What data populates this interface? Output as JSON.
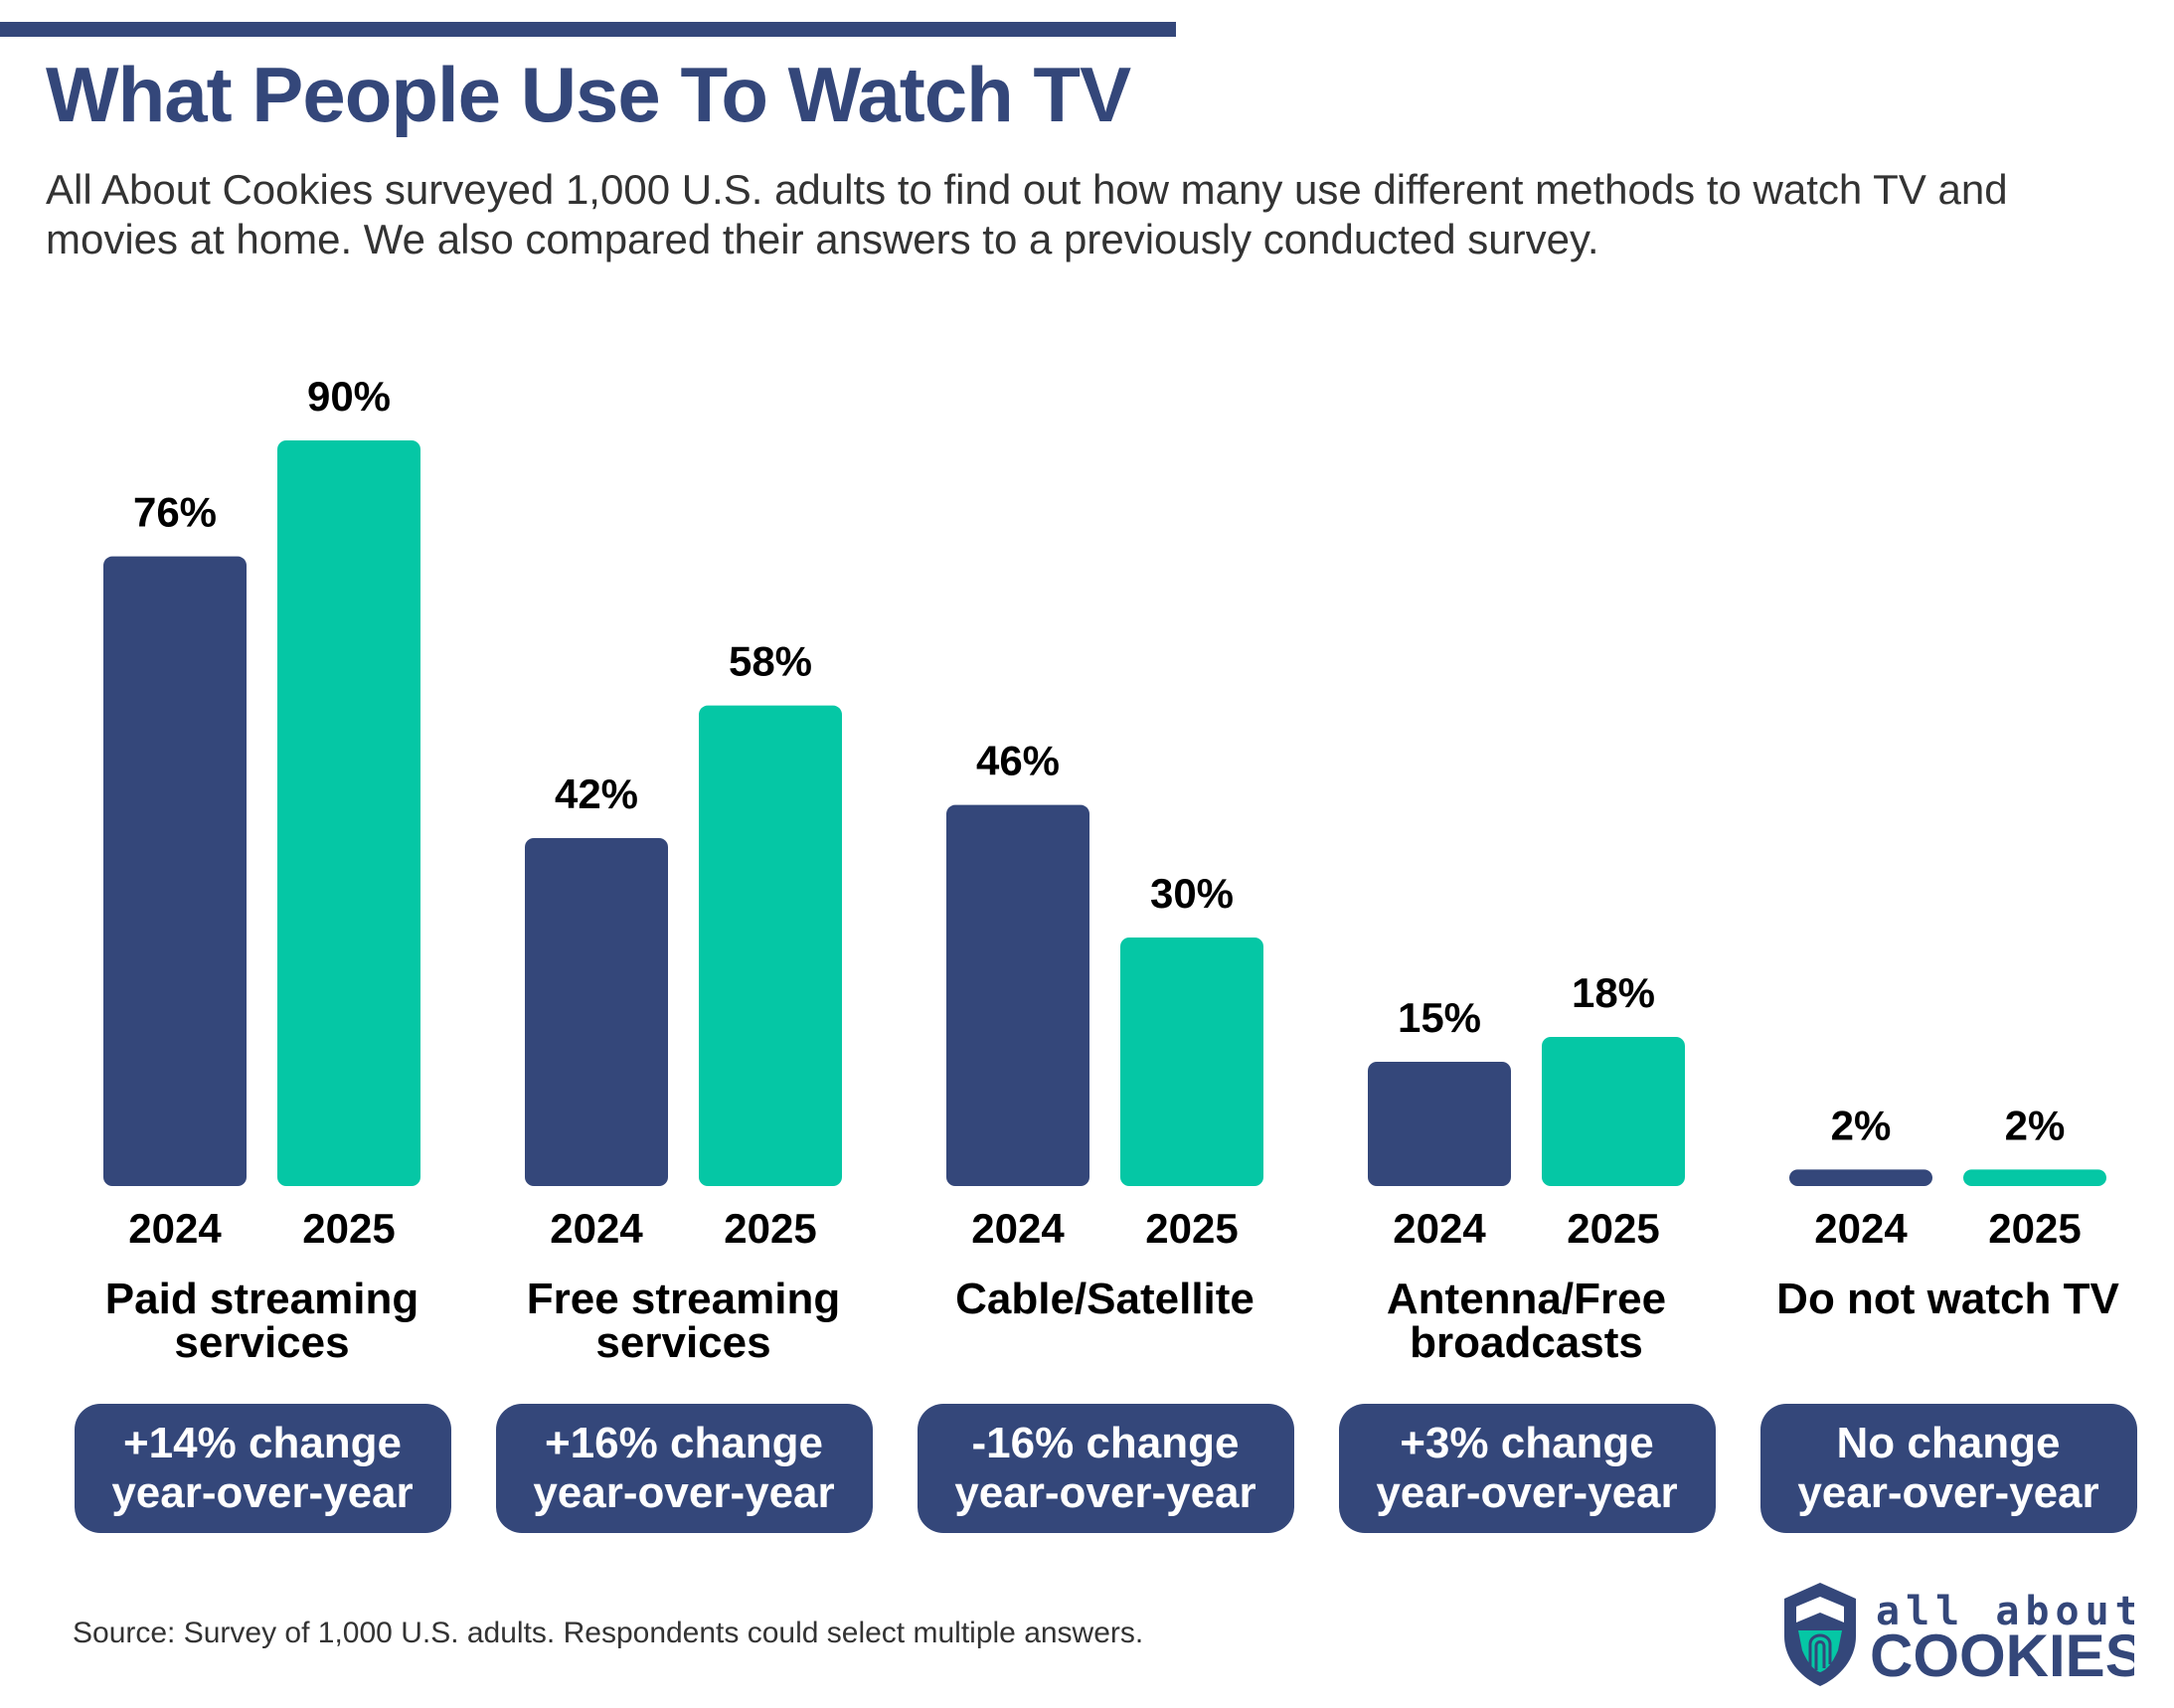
{
  "title": "What People Use To Watch TV",
  "subtitle": "All About Cookies surveyed 1,000 U.S. adults to find out how many use different methods to watch TV and movies at home. We also compared their answers to a previously conducted survey.",
  "source": "Source: Survey of 1,000 U.S. adults. Respondents could select multiple answers.",
  "logo": {
    "line1": "all about",
    "line2": "COOKIES"
  },
  "colors": {
    "navy": "#34477a",
    "teal": "#05c7a5"
  },
  "chart_data": {
    "type": "bar",
    "categories": [
      "Paid streaming services",
      "Free streaming services",
      "Cable/Satellite",
      "Antenna/Free broadcasts",
      "Do not watch TV"
    ],
    "series": [
      {
        "name": "2024",
        "values": [
          76,
          42,
          46,
          15,
          2
        ],
        "labels": [
          "76%",
          "42%",
          "46%",
          "15%",
          "2%"
        ],
        "color": "#34477a"
      },
      {
        "name": "2025",
        "values": [
          90,
          58,
          30,
          18,
          2
        ],
        "labels": [
          "90%",
          "58%",
          "30%",
          "18%",
          "2%"
        ],
        "color": "#05c7a5"
      }
    ],
    "ylim": [
      0,
      100
    ],
    "grid": false,
    "changes": [
      {
        "line1": "+14% change",
        "line2": "year-over-year"
      },
      {
        "line1": "+16% change",
        "line2": "year-over-year"
      },
      {
        "line1": "-16% change",
        "line2": "year-over-year"
      },
      {
        "line1": "+3% change",
        "line2": "year-over-year"
      },
      {
        "line1": "No change",
        "line2": "year-over-year"
      }
    ]
  }
}
